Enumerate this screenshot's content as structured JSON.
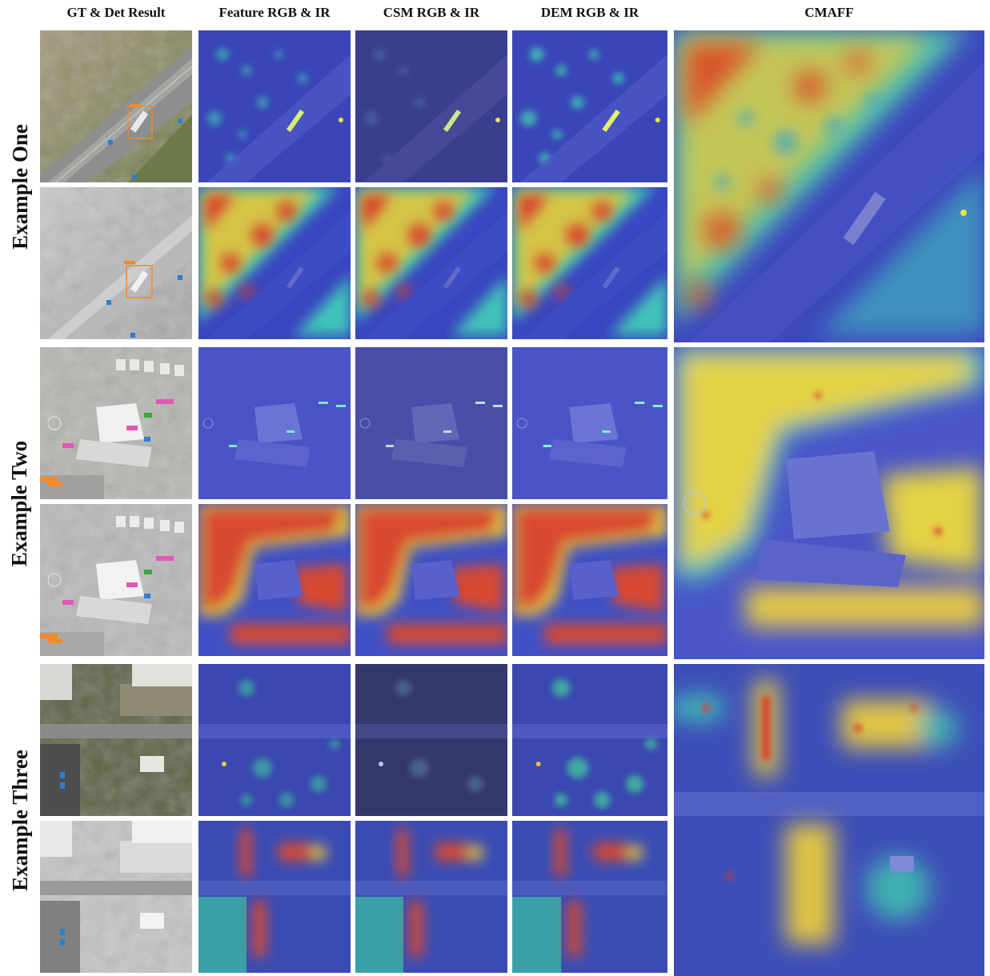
{
  "figure": {
    "column_headers": {
      "gt_det": "GT & Det Result",
      "feature": "Feature RGB & IR",
      "csm": "CSM RGB & IR",
      "dem": "DEM RGB & IR",
      "cmaff": "CMAFF"
    },
    "row_labels": {
      "one": "Example One",
      "two": "Example Two",
      "three": "Example Three"
    },
    "heatmap_colors": {
      "low": "#3a3fb5",
      "mid": "#3cc3c0",
      "high_yellow": "#e8d535",
      "high_red": "#d8342a",
      "rgb_aerial": "#8c8a74",
      "ir_gray": "#b8b8b8"
    },
    "annotation_colors": {
      "det_orange": "#f08a2b",
      "det_blue": "#2f7fd0",
      "det_pink": "#e455b8",
      "det_green": "#3aa53a"
    }
  }
}
